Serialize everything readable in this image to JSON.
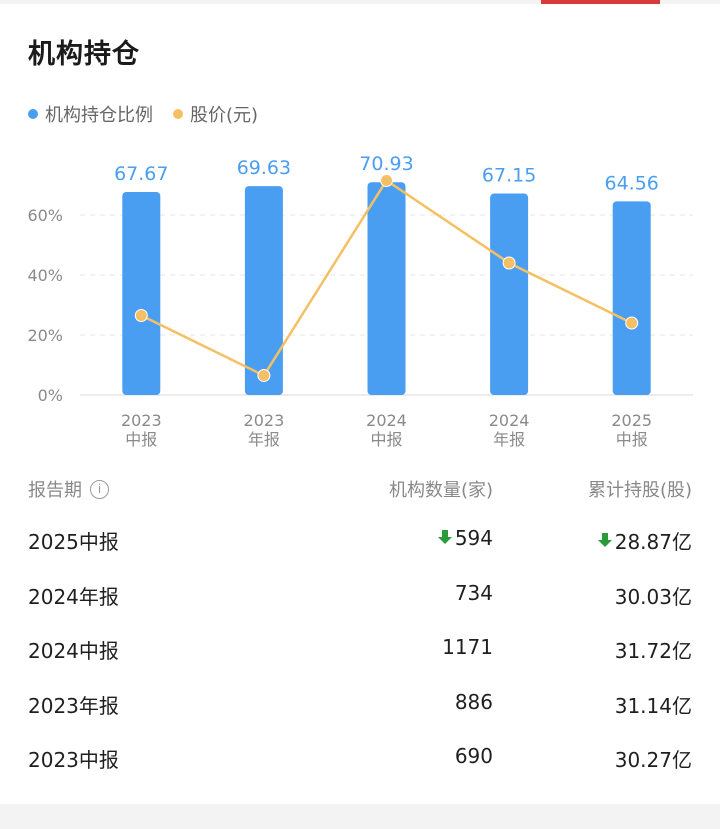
{
  "title": "机构持仓",
  "legend": {
    "ratio_label": "机构持仓比例",
    "price_label": "股价(元)",
    "ratio_color": "#4a9ef2",
    "price_color": "#f5c063"
  },
  "chart_data": {
    "type": "bar",
    "categories": [
      "2023中报",
      "2023年报",
      "2024中报",
      "2024年报",
      "2025中报"
    ],
    "category_lines": [
      [
        "2023",
        "中报"
      ],
      [
        "2023",
        "年报"
      ],
      [
        "2024",
        "中报"
      ],
      [
        "2024",
        "年报"
      ],
      [
        "2025",
        "中报"
      ]
    ],
    "series": [
      {
        "name": "机构持仓比例",
        "type": "bar",
        "values": [
          67.67,
          69.63,
          70.93,
          67.15,
          64.56
        ],
        "value_labels": [
          "67.67",
          "69.63",
          "70.93",
          "67.15",
          "64.56"
        ],
        "color": "#4a9ef2"
      },
      {
        "name": "股价(元)",
        "type": "line",
        "values": [
          26.5,
          6.5,
          71.5,
          44.0,
          24.0
        ],
        "color": "#f5c063"
      }
    ],
    "ylim": [
      0,
      60
    ],
    "yticks": [
      0,
      20,
      40,
      60
    ],
    "ytick_labels": [
      "0%",
      "20%",
      "40%",
      "60%"
    ],
    "grid": true,
    "legend_position": "top-left"
  },
  "table": {
    "headers": {
      "period": "报告期",
      "info_icon": "info-icon",
      "count": "机构数量(家)",
      "holding": "累计持股(股)"
    },
    "rows": [
      {
        "period": "2025中报",
        "count": "594",
        "holding": "28.87亿",
        "down": true
      },
      {
        "period": "2024年报",
        "count": "734",
        "holding": "30.03亿",
        "down": false
      },
      {
        "period": "2024中报",
        "count": "1171",
        "holding": "31.72亿",
        "down": false
      },
      {
        "period": "2023年报",
        "count": "886",
        "holding": "31.14亿",
        "down": false
      },
      {
        "period": "2023中报",
        "count": "690",
        "holding": "30.27亿",
        "down": false
      }
    ],
    "down_color": "#2a9a3a"
  }
}
